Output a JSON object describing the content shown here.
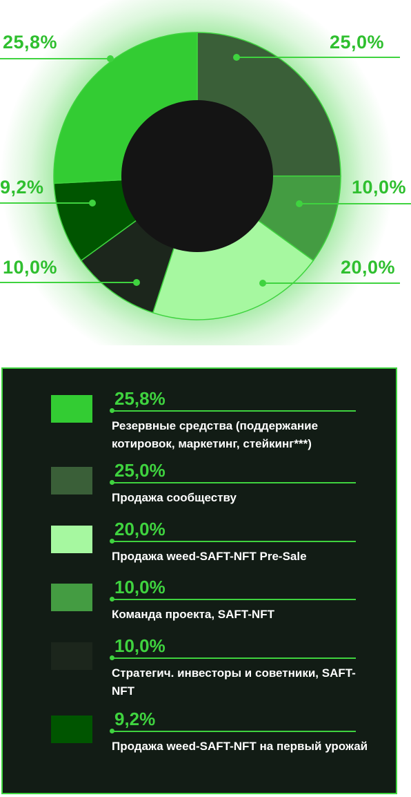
{
  "chart_data": {
    "type": "pie",
    "variant": "donut",
    "title": "",
    "slices": [
      {
        "value": 25.0,
        "label": "25,0%",
        "color": "#3a5f38"
      },
      {
        "value": 10.0,
        "label": "10,0%",
        "color": "#449c42"
      },
      {
        "value": 20.0,
        "label": "20,0%",
        "color": "#a6f8a0"
      },
      {
        "value": 10.0,
        "label": "10,0%",
        "color": "#1c261c"
      },
      {
        "value": 9.2,
        "label": "9,2%",
        "color": "#005500"
      },
      {
        "value": 25.8,
        "label": "25,8%",
        "color": "#33cc33"
      }
    ],
    "center_color": "#141414",
    "accent_color": "#3fd33f"
  },
  "legend": {
    "items": [
      {
        "pct": "25,8%",
        "desc": "Резервные средства (поддержание котировок, маркетинг, стейкинг***)",
        "color": "#33cc33"
      },
      {
        "pct": "25,0%",
        "desc": "Продажа сообществу",
        "color": "#3a5f38"
      },
      {
        "pct": "20,0%",
        "desc": "Продажа weed-SAFT-NFT Pre-Sale",
        "color": "#a6f8a0"
      },
      {
        "pct": "10,0%",
        "desc": "Команда проекта, SAFT-NFT",
        "color": "#449c42"
      },
      {
        "pct": "10,0%",
        "desc": "Стратегич. инвесторы и советники, SAFT-NFT",
        "color": "#1c261c"
      },
      {
        "pct": "9,2%",
        "desc": "Продажа weed-SAFT-NFT на первый урожай",
        "color": "#005500"
      }
    ]
  }
}
